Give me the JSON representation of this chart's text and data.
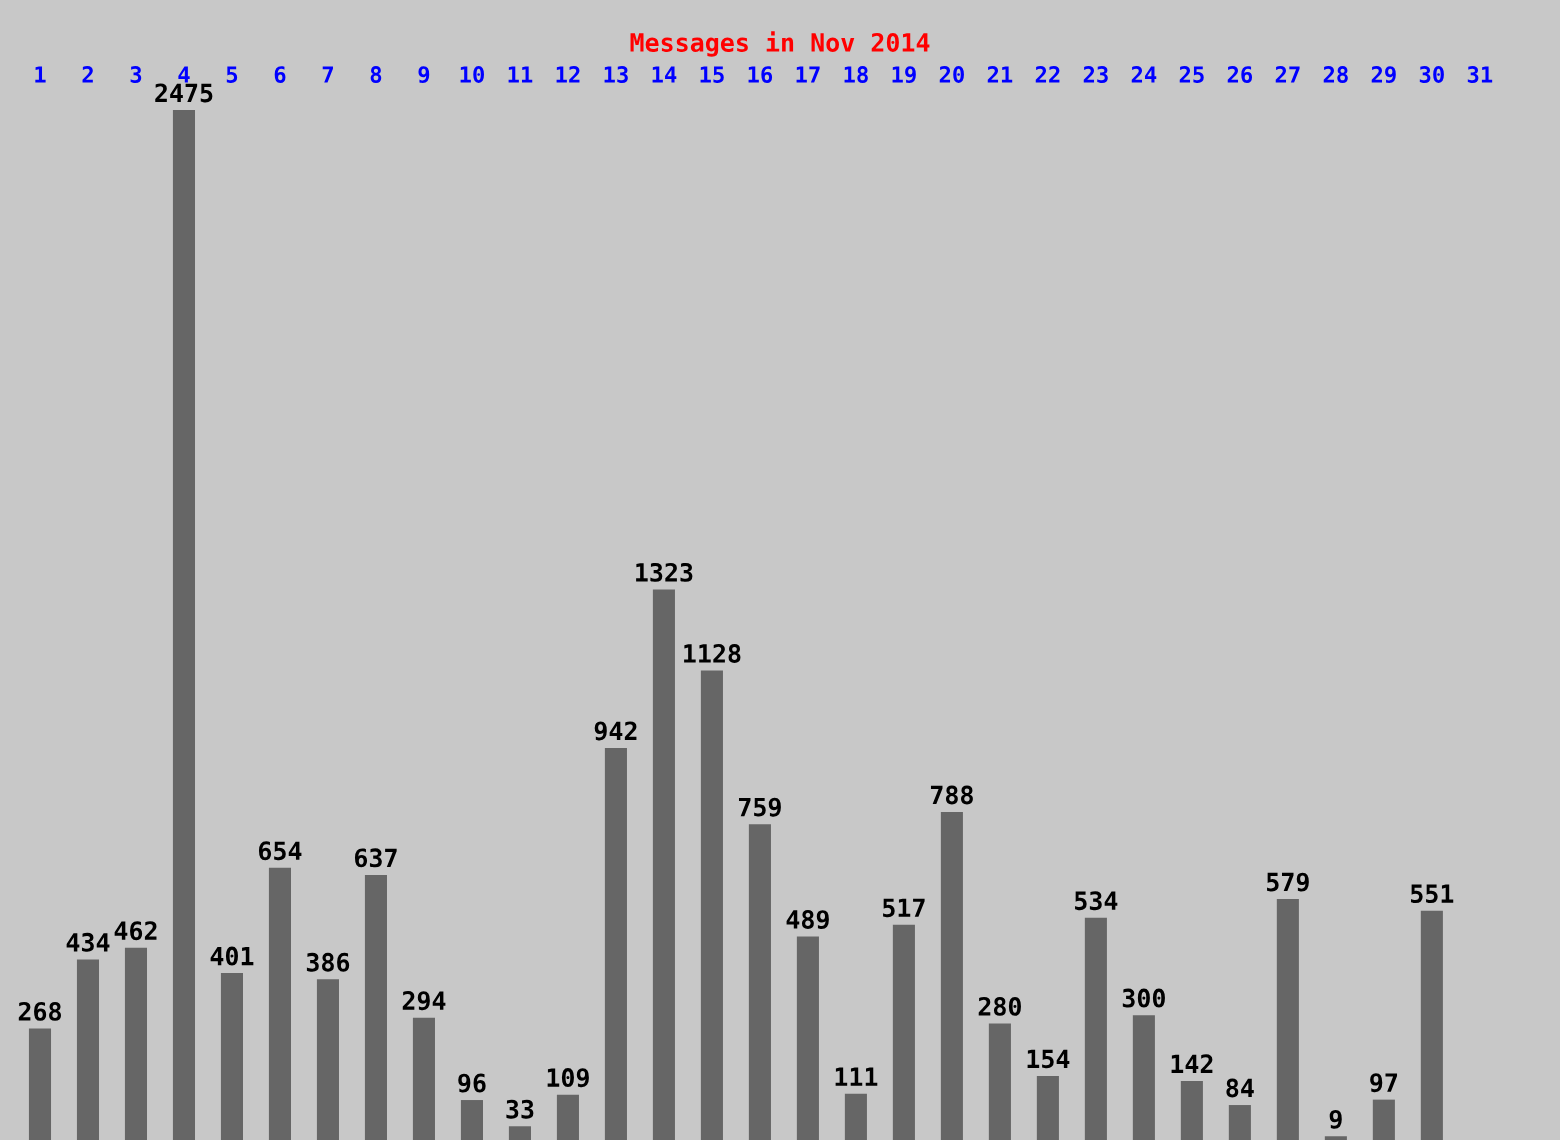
{
  "chart_data": {
    "type": "bar",
    "title": "Messages in Nov 2014",
    "categories": [
      "1",
      "2",
      "3",
      "4",
      "5",
      "6",
      "7",
      "8",
      "9",
      "10",
      "11",
      "12",
      "13",
      "14",
      "15",
      "16",
      "17",
      "18",
      "19",
      "20",
      "21",
      "22",
      "23",
      "24",
      "25",
      "26",
      "27",
      "28",
      "29",
      "30",
      "31"
    ],
    "values": [
      268,
      434,
      462,
      2475,
      401,
      654,
      386,
      637,
      294,
      96,
      33,
      109,
      942,
      1323,
      1128,
      759,
      489,
      111,
      517,
      788,
      280,
      154,
      534,
      300,
      142,
      84,
      579,
      9,
      97,
      551,
      null
    ],
    "color": "#666666",
    "data_labels": true,
    "grid": false,
    "legend": false
  }
}
